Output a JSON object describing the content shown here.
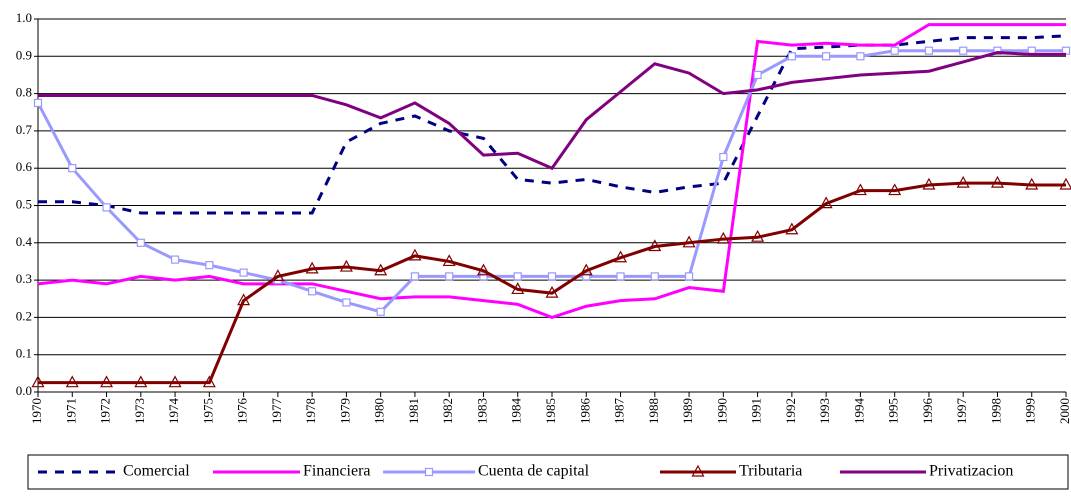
{
  "chart_data": {
    "type": "line",
    "categories": [
      "1970",
      "1971",
      "1972",
      "1973",
      "1974",
      "1975",
      "1976",
      "1977",
      "1978",
      "1979",
      "1980",
      "1981",
      "1982",
      "1983",
      "1984",
      "1985",
      "1986",
      "1987",
      "1988",
      "1989",
      "1990",
      "1991",
      "1992",
      "1993",
      "1994",
      "1995",
      "1996",
      "1997",
      "1998",
      "1999",
      "2000"
    ],
    "series": [
      {
        "name": "Comercial",
        "color": "#000080",
        "dash": true,
        "values": [
          0.51,
          0.51,
          0.5,
          0.48,
          0.48,
          0.48,
          0.48,
          0.48,
          0.48,
          0.67,
          0.72,
          0.74,
          0.7,
          0.68,
          0.57,
          0.56,
          0.57,
          0.55,
          0.535,
          0.55,
          0.56,
          0.74,
          0.92,
          0.925,
          0.93,
          0.93,
          0.94,
          0.95,
          0.95,
          0.95,
          0.955
        ]
      },
      {
        "name": "Financiera",
        "color": "#ff00ff",
        "values": [
          0.29,
          0.3,
          0.29,
          0.31,
          0.3,
          0.31,
          0.29,
          0.29,
          0.29,
          0.27,
          0.25,
          0.255,
          0.255,
          0.245,
          0.235,
          0.2,
          0.23,
          0.245,
          0.25,
          0.28,
          0.27,
          0.94,
          0.93,
          0.935,
          0.93,
          0.93,
          0.985,
          0.985,
          0.985,
          0.985,
          0.985
        ]
      },
      {
        "name": "Cuenta de capital",
        "color": "#9999ff",
        "marker": "square",
        "values": [
          0.775,
          0.6,
          0.495,
          0.4,
          0.355,
          0.34,
          0.32,
          0.3,
          0.27,
          0.24,
          0.215,
          0.31,
          0.31,
          0.31,
          0.31,
          0.31,
          0.31,
          0.31,
          0.31,
          0.31,
          0.63,
          0.85,
          0.9,
          0.9,
          0.9,
          0.915,
          0.915,
          0.915,
          0.915,
          0.915,
          0.915
        ]
      },
      {
        "name": "Tributaria",
        "color": "#800000",
        "marker": "triangle",
        "values": [
          0.025,
          0.025,
          0.025,
          0.025,
          0.025,
          0.025,
          0.245,
          0.31,
          0.33,
          0.335,
          0.325,
          0.365,
          0.35,
          0.325,
          0.275,
          0.265,
          0.325,
          0.36,
          0.39,
          0.4,
          0.41,
          0.415,
          0.435,
          0.505,
          0.54,
          0.54,
          0.555,
          0.56,
          0.56,
          0.555,
          0.555
        ]
      },
      {
        "name": "Privatizacion",
        "color": "#800080",
        "values": [
          0.795,
          0.795,
          0.795,
          0.795,
          0.795,
          0.795,
          0.795,
          0.795,
          0.795,
          0.77,
          0.735,
          0.775,
          0.72,
          0.635,
          0.64,
          0.6,
          0.73,
          0.805,
          0.88,
          0.855,
          0.8,
          0.81,
          0.83,
          0.84,
          0.85,
          0.855,
          0.86,
          0.885,
          0.91,
          0.905,
          0.905
        ]
      }
    ],
    "ylim": [
      0,
      1
    ],
    "yticks": [
      {
        "value": 0,
        "label": "0.0"
      },
      0.1,
      0.2,
      0.3,
      0.4,
      0.5,
      0.6,
      0.7,
      0.8,
      0.9,
      {
        "value": 1,
        "label": "1.0"
      }
    ],
    "grid": true,
    "legend": "bottom"
  }
}
